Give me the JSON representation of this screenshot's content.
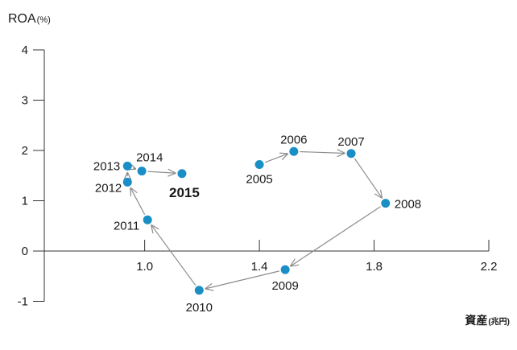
{
  "chart_data": {
    "type": "scatter",
    "title": "",
    "ylabel": "ROA",
    "ylabel_unit": "(%)",
    "xlabel": "資産",
    "xlabel_unit": "(兆円)",
    "xlim": [
      0.65,
      2.2
    ],
    "ylim": [
      -1,
      4
    ],
    "xticks": [
      "1.0",
      "1.4",
      "1.8",
      "2.2"
    ],
    "xtick_values": [
      1.0,
      1.4,
      1.8,
      2.2
    ],
    "yticks": [
      "4",
      "3",
      "2",
      "1",
      "0",
      "-1"
    ],
    "ytick_values": [
      4,
      3,
      2,
      1,
      0,
      -1
    ],
    "grid": false,
    "connected_with_arrows": true,
    "marker_color": "#1a8fc6",
    "line_color": "#8c8c8c",
    "points": [
      {
        "label": "2005",
        "x": 1.4,
        "y": 1.72
      },
      {
        "label": "2006",
        "x": 1.52,
        "y": 1.98
      },
      {
        "label": "2007",
        "x": 1.72,
        "y": 1.94
      },
      {
        "label": "2008",
        "x": 1.84,
        "y": 0.95
      },
      {
        "label": "2009",
        "x": 1.49,
        "y": -0.37
      },
      {
        "label": "2010",
        "x": 1.19,
        "y": -0.78
      },
      {
        "label": "2011",
        "x": 1.01,
        "y": 0.62
      },
      {
        "label": "2012",
        "x": 0.94,
        "y": 1.37
      },
      {
        "label": "2013",
        "x": 0.94,
        "y": 1.69
      },
      {
        "label": "2014",
        "x": 0.99,
        "y": 1.59
      },
      {
        "label": "2015",
        "x": 1.13,
        "y": 1.54,
        "highlight": true
      }
    ]
  }
}
